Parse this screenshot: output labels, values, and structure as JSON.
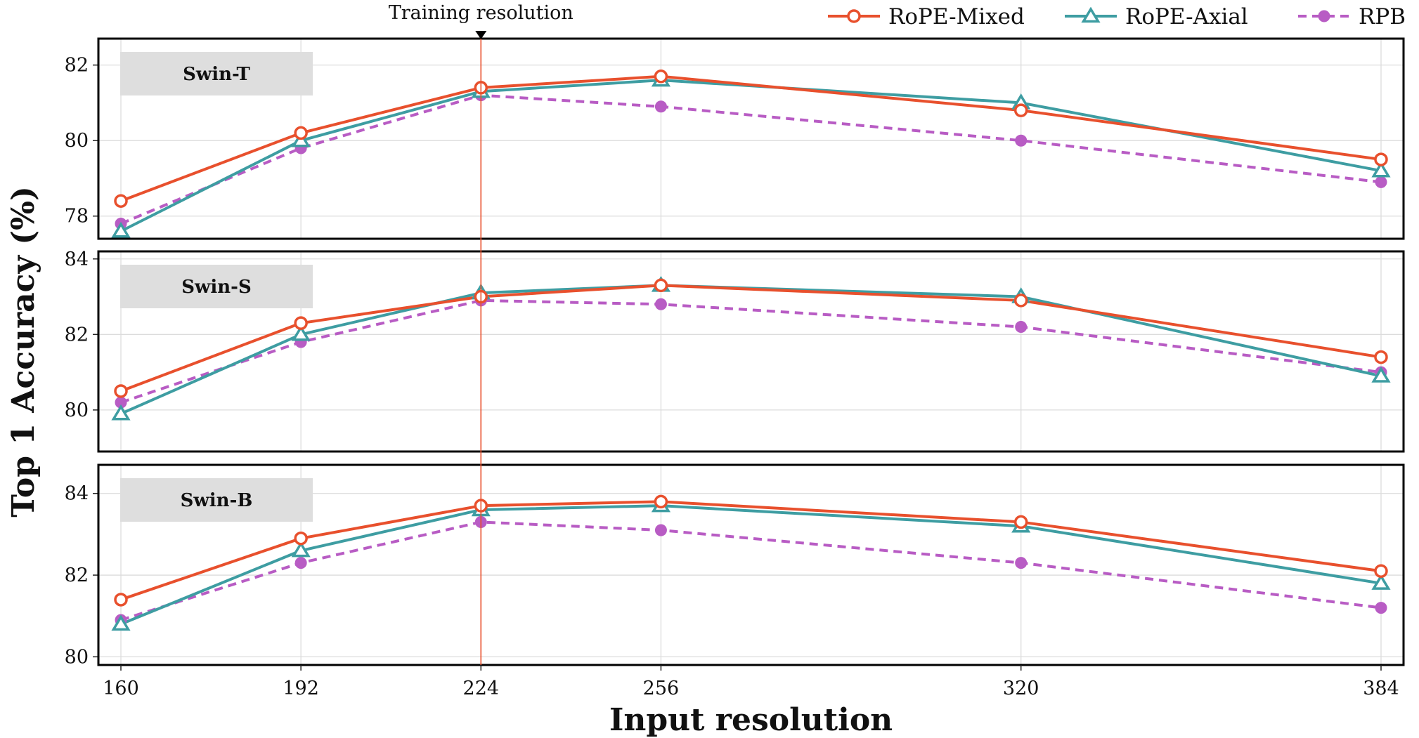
{
  "chart_data": {
    "type": "line",
    "xlabel": "Input resolution",
    "ylabel": "Top 1 Accuracy (%)",
    "x": [
      160,
      192,
      224,
      256,
      320,
      384
    ],
    "x_tick_labels": [
      "160",
      "192",
      "224",
      "256",
      "320",
      "384"
    ],
    "xlim": [
      156,
      388
    ],
    "legend": {
      "position": "top-right",
      "entries": [
        "RoPE-Mixed",
        "RoPE-Axial",
        "RPB"
      ]
    },
    "grid": true,
    "annotation": {
      "text": "Training resolution",
      "x": 224
    },
    "colors": {
      "RoPE-Mixed": "#E8502D",
      "RoPE-Axial": "#3E9DA2",
      "RPB": "#B85CC4",
      "vline": "#E8502D"
    },
    "panels": [
      {
        "label": "Swin-T",
        "ylim": [
          77.4,
          82.7
        ],
        "yticks": [
          78,
          80,
          82
        ],
        "series": [
          {
            "name": "RoPE-Mixed",
            "values": [
              78.4,
              80.2,
              81.4,
              81.7,
              80.8,
              79.5
            ]
          },
          {
            "name": "RoPE-Axial",
            "values": [
              77.6,
              80.0,
              81.3,
              81.6,
              81.0,
              79.2
            ]
          },
          {
            "name": "RPB",
            "values": [
              77.8,
              79.8,
              81.2,
              80.9,
              80.0,
              78.9
            ]
          }
        ]
      },
      {
        "label": "Swin-S",
        "ylim": [
          78.9,
          84.2
        ],
        "yticks": [
          80,
          82,
          84
        ],
        "series": [
          {
            "name": "RoPE-Mixed",
            "values": [
              80.5,
              82.3,
              83.0,
              83.3,
              82.9,
              81.4
            ]
          },
          {
            "name": "RoPE-Axial",
            "values": [
              79.9,
              82.0,
              83.1,
              83.3,
              83.0,
              80.9
            ]
          },
          {
            "name": "RPB",
            "values": [
              80.2,
              81.8,
              82.9,
              82.8,
              82.2,
              81.0
            ]
          }
        ]
      },
      {
        "label": "Swin-B",
        "ylim": [
          79.8,
          84.7
        ],
        "yticks": [
          80,
          82,
          84
        ],
        "series": [
          {
            "name": "RoPE-Mixed",
            "values": [
              81.4,
              82.9,
              83.7,
              83.8,
              83.3,
              82.1
            ]
          },
          {
            "name": "RoPE-Axial",
            "values": [
              80.8,
              82.6,
              83.6,
              83.7,
              83.2,
              81.8
            ]
          },
          {
            "name": "RPB",
            "values": [
              80.9,
              82.3,
              83.3,
              83.1,
              82.3,
              81.2
            ]
          }
        ]
      }
    ]
  }
}
